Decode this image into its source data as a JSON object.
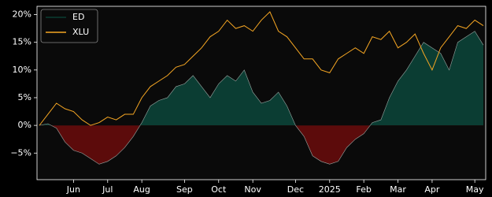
{
  "chart_data": {
    "type": "area-line",
    "categories": [
      null,
      null,
      null,
      null,
      "Jun",
      null,
      null,
      null,
      "Jul",
      null,
      null,
      null,
      "Aug",
      null,
      null,
      null,
      null,
      "Sep",
      null,
      null,
      null,
      "Oct",
      null,
      null,
      null,
      "Nov",
      null,
      null,
      null,
      null,
      "Dec",
      null,
      null,
      null,
      "2025",
      null,
      null,
      null,
      "Feb",
      null,
      null,
      null,
      "Mar",
      null,
      null,
      null,
      "Apr",
      null,
      null,
      null,
      null,
      "May",
      null
    ],
    "series": [
      {
        "name": "ED",
        "color": "#0b3d33",
        "line_color": "#9aa7a3",
        "fill_positive": "#0b3d33",
        "fill_negative": "#5c0b0b",
        "values": [
          0,
          0.3,
          -0.5,
          -3,
          -4.5,
          -5,
          -6,
          -7,
          -6.5,
          -5.5,
          -4,
          -2,
          0.5,
          3.5,
          4.5,
          5,
          7,
          7.5,
          9,
          7,
          5,
          7.5,
          9,
          8,
          10,
          6,
          4,
          4.5,
          6,
          3.5,
          0,
          -2,
          -5.5,
          -6.5,
          -7,
          -6.5,
          -4,
          -2.5,
          -1.5,
          0.5,
          1,
          5,
          8,
          10,
          12.5,
          15,
          14,
          13,
          10,
          15,
          16,
          17,
          14.5
        ]
      },
      {
        "name": "XLU",
        "color": "#f5a623",
        "values": [
          0,
          2,
          4,
          3,
          2.5,
          1,
          0,
          0.5,
          1.5,
          1,
          2,
          2,
          5,
          7,
          8,
          9,
          10.5,
          11,
          12.5,
          14,
          16,
          17,
          19,
          17.5,
          18,
          17,
          19,
          20.5,
          17,
          16,
          14,
          12,
          12,
          10,
          9.5,
          12,
          13,
          14,
          13,
          16,
          15.5,
          17,
          14,
          15,
          16.5,
          13,
          10,
          14,
          16,
          18,
          17.5,
          19,
          18
        ]
      }
    ],
    "ylim": [
      -9.8,
      21.5
    ],
    "yticks": [
      {
        "value": -5,
        "label": "−5%"
      },
      {
        "value": 0,
        "label": "0%"
      },
      {
        "value": 5,
        "label": "5%"
      },
      {
        "value": 10,
        "label": "10%"
      },
      {
        "value": 15,
        "label": "15%"
      },
      {
        "value": 20,
        "label": "20%"
      }
    ],
    "legend": "upper left"
  }
}
